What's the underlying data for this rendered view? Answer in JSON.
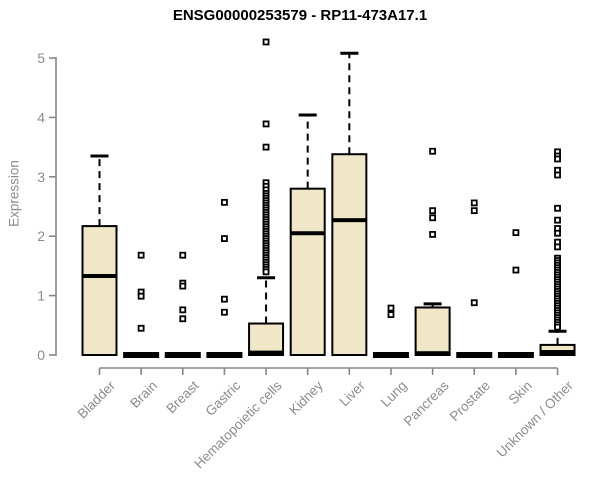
{
  "chart_data": {
    "type": "boxplot",
    "title": "ENSG00000253579 - RP11-473A17.1",
    "ylabel": "Expression",
    "xlabel": "",
    "ylim": [
      0,
      5
    ],
    "yticks": [
      0,
      1,
      2,
      3,
      4,
      5
    ],
    "grid": false,
    "categories": [
      "Bladder",
      "Brain",
      "Breast",
      "Gastric",
      "Hematopoietic cells",
      "Kidney",
      "Liver",
      "Lung",
      "Pancreas",
      "Prostate",
      "Skin",
      "Unknown / Other"
    ],
    "series": [
      {
        "name": "Bladder",
        "min": 0,
        "q1": 0,
        "median": 1.33,
        "q3": 2.17,
        "max": 3.35,
        "outliers": []
      },
      {
        "name": "Brain",
        "min": 0,
        "q1": 0,
        "median": 0,
        "q3": 0,
        "max": 0,
        "outliers": [
          1.68,
          1.06,
          0.99,
          0.45
        ]
      },
      {
        "name": "Breast",
        "min": 0,
        "q1": 0,
        "median": 0,
        "q3": 0,
        "max": 0,
        "outliers": [
          1.68,
          1.21,
          1.16,
          0.76,
          0.61
        ]
      },
      {
        "name": "Gastric",
        "min": 0,
        "q1": 0,
        "median": 0,
        "q3": 0,
        "max": 0,
        "outliers": [
          2.57,
          1.96,
          0.94,
          0.72
        ]
      },
      {
        "name": "Hematopoietic cells",
        "min": 0,
        "q1": 0,
        "median": 0.04,
        "q3": 0.53,
        "max": 1.3,
        "outliers": [
          5.27,
          3.89,
          3.5,
          2.9,
          2.84,
          2.78,
          2.72,
          2.68,
          2.64,
          2.6,
          2.56,
          2.52,
          2.48,
          2.44,
          2.4,
          2.36,
          2.32,
          2.28,
          2.24,
          2.2,
          2.16,
          2.12,
          2.08,
          2.04,
          2.0,
          1.96,
          1.92,
          1.88,
          1.84,
          1.8,
          1.76,
          1.72,
          1.68,
          1.64,
          1.6,
          1.56,
          1.52,
          1.48,
          1.44,
          1.4
        ]
      },
      {
        "name": "Kidney",
        "min": 0,
        "q1": 0,
        "median": 2.05,
        "q3": 2.8,
        "max": 4.04,
        "outliers": []
      },
      {
        "name": "Liver",
        "min": 0,
        "q1": 0,
        "median": 2.27,
        "q3": 3.38,
        "max": 5.08,
        "outliers": []
      },
      {
        "name": "Lung",
        "min": 0,
        "q1": 0,
        "median": 0,
        "q3": 0,
        "max": 0,
        "outliers": [
          0.79,
          0.68
        ]
      },
      {
        "name": "Pancreas",
        "min": 0,
        "q1": 0,
        "median": 0.03,
        "q3": 0.8,
        "max": 0.86,
        "outliers": [
          3.43,
          2.43,
          2.31,
          2.03
        ]
      },
      {
        "name": "Prostate",
        "min": 0,
        "q1": 0,
        "median": 0,
        "q3": 0,
        "max": 0,
        "outliers": [
          2.56,
          2.43,
          0.88
        ]
      },
      {
        "name": "Skin",
        "min": 0,
        "q1": 0,
        "median": 0,
        "q3": 0,
        "max": 0,
        "outliers": [
          2.06,
          1.43
        ]
      },
      {
        "name": "Unknown / Other",
        "min": 0,
        "q1": 0,
        "median": 0.05,
        "q3": 0.17,
        "max": 0.4,
        "outliers": [
          3.42,
          3.35,
          3.3,
          3.11,
          3.03,
          2.47,
          2.27,
          2.13,
          2.05,
          1.9,
          1.82,
          1.63,
          1.59,
          1.55,
          1.51,
          1.47,
          1.43,
          1.39,
          1.35,
          1.31,
          1.27,
          1.23,
          1.19,
          1.15,
          1.11,
          1.07,
          1.03,
          0.99,
          0.95,
          0.91,
          0.87,
          0.83,
          0.79,
          0.75,
          0.71,
          0.67,
          0.63,
          0.59,
          0.55,
          0.51,
          0.47
        ]
      }
    ],
    "colors": {
      "box_fill": "#EFE7C8",
      "box_border": "#000000",
      "median": "#000000",
      "outlier": "#000000",
      "axis": "#878787",
      "tick_text": "#8C8C8C",
      "title_text": "#000000"
    }
  }
}
